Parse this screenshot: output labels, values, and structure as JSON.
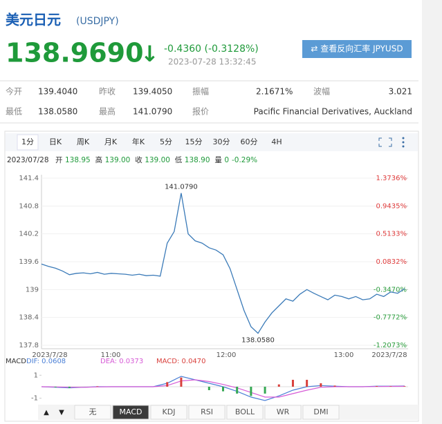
{
  "header": {
    "title": "美元日元",
    "code": "(USDJPY)",
    "price": "138.9690",
    "arrow": "↓",
    "change": "-0.4360 (-0.3128%)",
    "time": "2023-07-28 13:32:45",
    "button": "⇄ 查看反向汇率 JPYUSD"
  },
  "quote": {
    "rows": [
      [
        [
          "今开",
          "139.4040"
        ],
        [
          "昨收",
          "139.4050"
        ],
        [
          "振幅",
          "2.1671%"
        ],
        [
          "波幅",
          "3.021"
        ]
      ],
      [
        [
          "最低",
          "138.0580"
        ],
        [
          "最高",
          "141.0790"
        ],
        [
          "报价",
          "Pacific Financial Derivatives, Auckland"
        ]
      ]
    ]
  },
  "tabs": {
    "items": [
      "1分",
      "日K",
      "周K",
      "月K",
      "年K",
      "5分",
      "15分",
      "30分",
      "60分",
      "4H"
    ],
    "selected": 0
  },
  "info": {
    "date": "2023/07/28",
    "items": [
      [
        "开",
        "138.95"
      ],
      [
        "高",
        "139.00"
      ],
      [
        "收",
        "139.00"
      ],
      [
        "低",
        "138.90"
      ],
      [
        "量",
        "0"
      ]
    ],
    "change": "-0.29%"
  },
  "chart_data": [
    {
      "type": "line",
      "color": "#3a7ab8",
      "values": [
        139.55,
        139.5,
        139.46,
        139.4,
        139.32,
        139.35,
        139.36,
        139.34,
        139.37,
        139.33,
        139.35,
        139.34,
        139.33,
        139.31,
        139.33,
        139.3,
        139.31,
        139.29,
        140.0,
        140.25,
        141.079,
        140.2,
        140.05,
        140.0,
        139.9,
        139.85,
        139.75,
        139.45,
        139.0,
        138.55,
        138.2,
        138.058,
        138.3,
        138.5,
        138.65,
        138.8,
        138.75,
        138.9,
        139.0,
        138.92,
        138.85,
        138.78,
        138.88,
        138.85,
        138.8,
        138.85,
        138.78,
        138.8,
        138.9,
        138.85,
        138.95,
        138.92,
        139.02
      ],
      "x_labels": [
        "2023/7/28",
        "11:00",
        "12:00",
        "13:00",
        "2023/7/28"
      ],
      "annotations": [
        "141.0790",
        "138.0580"
      ],
      "ylim": [
        137.8,
        141.4
      ],
      "yticks": [
        137.8,
        138.4,
        139,
        139.6,
        140.2,
        140.8,
        141.4
      ],
      "y2lim": [
        -1.2073,
        1.3736
      ],
      "y2ticks": [
        {
          "value": -1.2073,
          "label": "-1.2073%"
        },
        {
          "value": -0.7772,
          "label": "-0.7772%"
        },
        {
          "value": -0.347,
          "label": "-0.3470%"
        },
        {
          "value": 0.0832,
          "label": "0.0832%"
        },
        {
          "value": 0.5133,
          "label": "0.5133%"
        },
        {
          "value": 0.9435,
          "label": "0.9435%"
        },
        {
          "value": 1.3736,
          "label": "1.3736%"
        }
      ],
      "up_color": "#e03c3c",
      "down_color": "#2a9d3c",
      "grid": true
    },
    {
      "type": "macd",
      "title": "MACD",
      "ylim": [
        -1.5,
        1.2
      ],
      "yticks": [
        -1,
        1
      ],
      "negative_color": "#35a853",
      "series": [
        {
          "name": "DIF: 0.0608",
          "color": "#4a7fd6",
          "values": [
            0,
            -0.05,
            -0.1,
            -0.05,
            0,
            0,
            0,
            0,
            0,
            0.3,
            0.9,
            0.6,
            0.3,
            0,
            -0.4,
            -0.9,
            -1.2,
            -0.8,
            -0.3,
            0,
            0.1,
            0.05,
            0,
            0,
            0.05,
            0.05,
            0.0608
          ]
        },
        {
          "name": "DEA: 0.0373",
          "color": "#d659d6",
          "values": [
            0,
            -0.02,
            -0.05,
            -0.05,
            -0.02,
            0,
            0,
            0,
            0,
            0.1,
            0.5,
            0.6,
            0.45,
            0.2,
            -0.1,
            -0.5,
            -0.9,
            -0.9,
            -0.6,
            -0.3,
            -0.05,
            0,
            0,
            0,
            0.02,
            0.03,
            0.0373
          ]
        },
        {
          "name": "MACD: 0.0470",
          "color": "#d9403c",
          "kind": "bar",
          "values": [
            0,
            -0.06,
            -0.1,
            0,
            0.04,
            0,
            0,
            0,
            0,
            0.4,
            0.8,
            0,
            -0.3,
            -0.4,
            -0.6,
            -0.8,
            -0.6,
            0.2,
            0.6,
            0.6,
            0.3,
            0.1,
            0,
            0,
            0.06,
            0.04,
            0.047
          ]
        }
      ]
    }
  ],
  "indicator_tabs": {
    "arrows": [
      "▲",
      "▼"
    ],
    "items": [
      "无",
      "MACD",
      "KDJ",
      "RSI",
      "BOLL",
      "WR",
      "DMI"
    ],
    "selected": 1
  }
}
